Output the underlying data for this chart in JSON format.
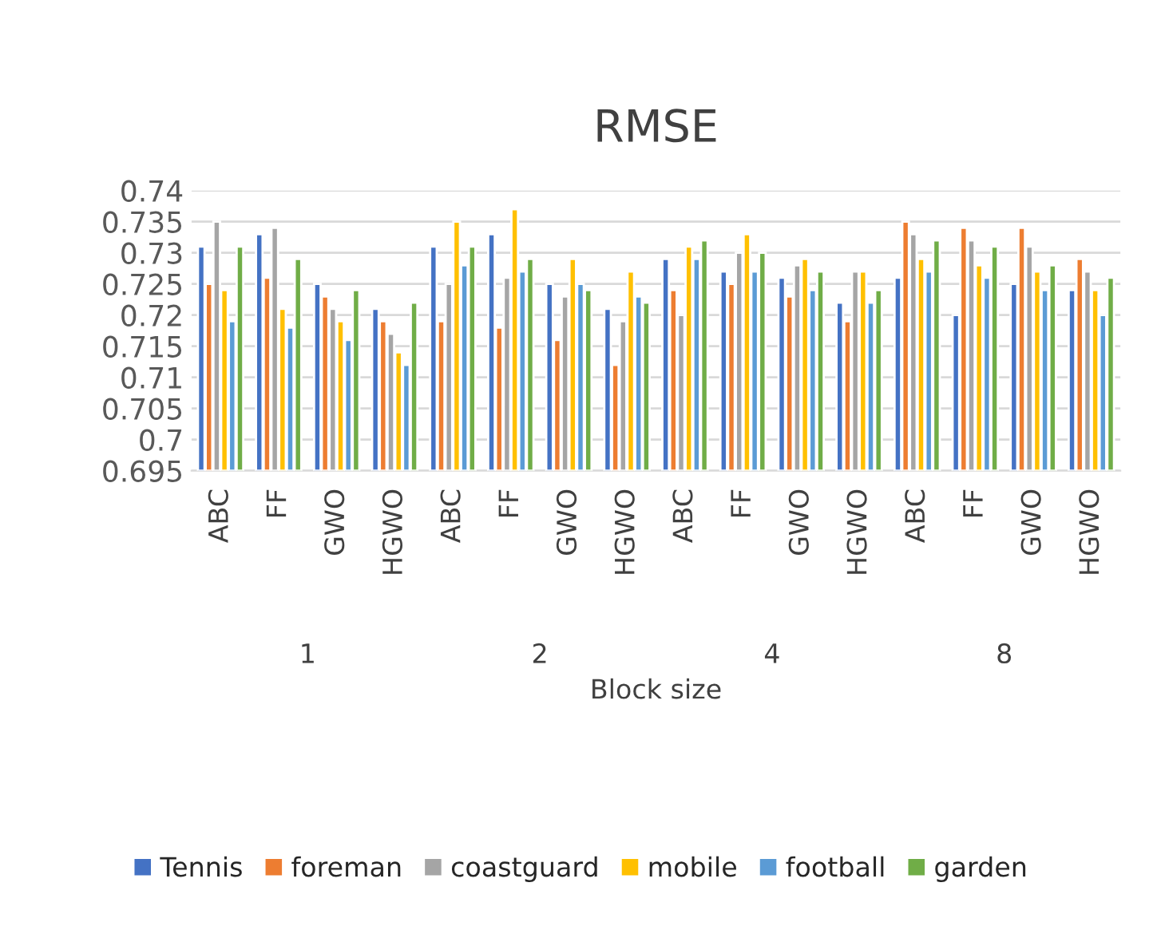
{
  "chart_data": {
    "type": "bar",
    "title": "RMSE",
    "xlabel": "Block size",
    "categories": [
      "ABC",
      "FF",
      "GWO",
      "HGWO",
      "ABC",
      "FF",
      "GWO",
      "HGWO",
      "ABC",
      "FF",
      "GWO",
      "HGWO",
      "ABC",
      "FF",
      "GWO",
      "HGWO"
    ],
    "annotations": [
      "1",
      "2",
      "4",
      "8"
    ],
    "series": [
      {
        "name": "Tennis",
        "color": "#4472c4",
        "values": [
          0.731,
          0.733,
          0.725,
          0.721,
          0.731,
          0.733,
          0.725,
          0.721,
          0.729,
          0.727,
          0.726,
          0.722,
          0.726,
          0.72,
          0.725,
          0.724
        ]
      },
      {
        "name": "foreman",
        "color": "#ed7d31",
        "values": [
          0.725,
          0.726,
          0.723,
          0.719,
          0.719,
          0.718,
          0.716,
          0.712,
          0.724,
          0.725,
          0.723,
          0.719,
          0.735,
          0.734,
          0.734,
          0.729
        ]
      },
      {
        "name": "coastguard",
        "color": "#a5a5a5",
        "values": [
          0.735,
          0.734,
          0.721,
          0.717,
          0.725,
          0.726,
          0.723,
          0.719,
          0.72,
          0.73,
          0.728,
          0.727,
          0.733,
          0.732,
          0.731,
          0.727
        ]
      },
      {
        "name": "mobile",
        "color": "#ffc000",
        "values": [
          0.724,
          0.721,
          0.719,
          0.714,
          0.735,
          0.737,
          0.729,
          0.727,
          0.731,
          0.733,
          0.729,
          0.727,
          0.729,
          0.728,
          0.727,
          0.724
        ]
      },
      {
        "name": "football",
        "color": "#5b9bd5",
        "values": [
          0.719,
          0.718,
          0.716,
          0.712,
          0.728,
          0.727,
          0.725,
          0.723,
          0.729,
          0.727,
          0.724,
          0.722,
          0.727,
          0.726,
          0.724,
          0.72
        ]
      },
      {
        "name": "garden",
        "color": "#70ad47",
        "values": [
          0.731,
          0.729,
          0.724,
          0.722,
          0.731,
          0.729,
          0.724,
          0.722,
          0.732,
          0.73,
          0.727,
          0.724,
          0.732,
          0.731,
          0.728,
          0.726
        ]
      }
    ],
    "ylim": [
      0.695,
      0.74
    ],
    "yticks": [
      0.695,
      0.7,
      0.705,
      0.71,
      0.715,
      0.72,
      0.725,
      0.73,
      0.735,
      0.74
    ],
    "grid": "y",
    "legend": "bottom"
  }
}
